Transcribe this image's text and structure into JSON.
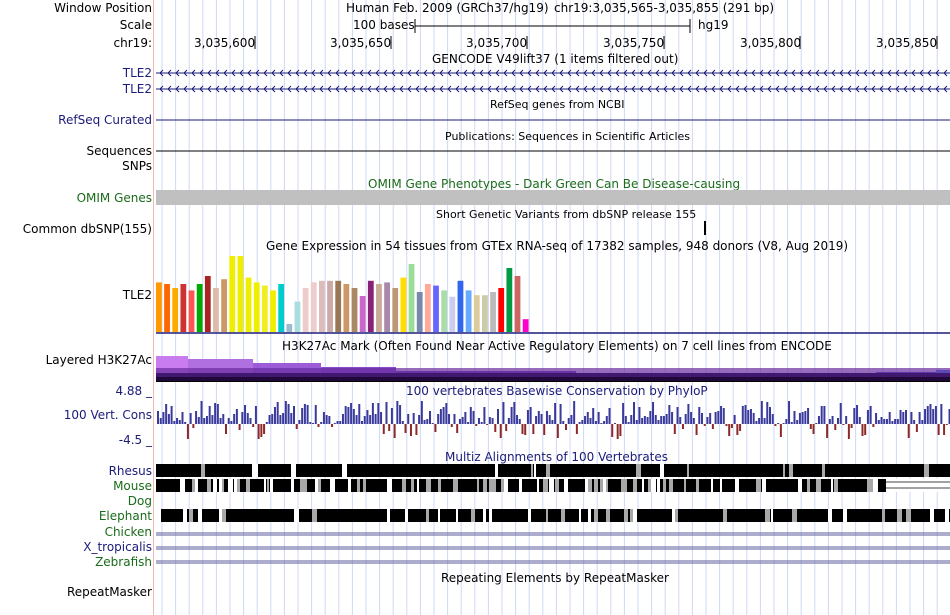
{
  "header": {
    "window_position_label": "Window Position",
    "scale_label": "Scale",
    "chr_label": "chr19:",
    "assembly_title": "Human Feb. 2009 (GRCh37/hg19)",
    "range_text": "chr19:3,035,565-3,035,855 (291 bp)",
    "scale_bar_text": "100 bases",
    "scale_db": "hg19",
    "ruler_ticks": [
      "3,035,600",
      "3,035,650",
      "3,035,700",
      "3,035,750",
      "3,035,800",
      "3,035,850"
    ]
  },
  "tracks": {
    "gencode": {
      "title": "GENCODE V49lift37 (1 items filtered out)",
      "items": [
        "TLE2",
        "TLE2"
      ]
    },
    "refseq": {
      "title": "RefSeq genes from NCBI",
      "label": "RefSeq Curated"
    },
    "publications": {
      "title": "Publications: Sequences in Scientific Articles",
      "label": "Sequences",
      "snps_label": "SNPs"
    },
    "omim": {
      "title": "OMIM Gene Phenotypes - Dark Green Can Be Disease-causing",
      "label": "OMIM Genes"
    },
    "dbsnp": {
      "title": "Short Genetic Variants from dbSNP release 155",
      "label": "Common dbSNP(155)"
    },
    "gtex": {
      "title": "Gene Expression in 54 tissues from GTEx RNA-seq of 17382 samples, 948 donors (V8, Aug 2019)",
      "label": "TLE2"
    },
    "h3k27ac": {
      "title": "H3K27Ac Mark (Often Found Near Active Regulatory Elements) on 7 cell lines from ENCODE",
      "label": "Layered H3K27Ac"
    },
    "phylop": {
      "title": "100 vertebrates Basewise Conservation by PhyloP",
      "label": "100 Vert. Cons",
      "max_label": "4.88 _",
      "min_label": "-4.5 _"
    },
    "multiz": {
      "title": "Multiz Alignments of 100 Vertebrates",
      "species": [
        "Rhesus",
        "Mouse",
        "Dog",
        "Elephant",
        "Chicken",
        "X_tropicalis",
        "Zebrafish"
      ]
    },
    "repeatmasker": {
      "title": "Repeating Elements by RepeatMasker",
      "label": "RepeatMasker"
    }
  },
  "gtex_values": [
    0.62,
    0.6,
    0.55,
    0.6,
    0.52,
    0.6,
    0.7,
    0.55,
    0.66,
    0.95,
    0.95,
    0.68,
    0.62,
    0.58,
    0.52,
    0.6,
    0.1,
    0.38,
    0.55,
    0.62,
    0.64,
    0.64,
    0.64,
    0.6,
    0.55,
    0.45,
    0.64,
    0.6,
    0.62,
    0.55,
    0.68,
    0.85,
    0.5,
    0.6,
    0.58,
    0.52,
    0.44,
    0.64,
    0.52,
    0.46,
    0.46,
    0.5,
    0.55,
    0.8,
    0.7,
    0.16
  ],
  "gtex_colors": [
    "#ff9900",
    "#ff6600",
    "#ffaa00",
    "#cc3333",
    "#ff5555",
    "#00aa00",
    "#aa2222",
    "#ddbbaa",
    "#cc9966",
    "#eeee00",
    "#eeee00",
    "#eeee00",
    "#eeee00",
    "#eeee22",
    "#eeee00",
    "#00cccc",
    "#99bbcc",
    "#aadddd",
    "#eecccc",
    "#eecccc",
    "#ddbbbb",
    "#ccaaaa",
    "#997755",
    "#cc9966",
    "#aa8866",
    "#cc66cc",
    "#882277",
    "#ccaa99",
    "#aa88aa",
    "#bb9977",
    "#ffdd00",
    "#99dd99",
    "#7788aa",
    "#ffaa99",
    "#6666ff",
    "#aaddaa",
    "#ccccee",
    "#3366ee",
    "#66aaff",
    "#ddcc99",
    "#ccccaa",
    "#bbbbbb",
    "#ff0000",
    "#009944",
    "#cc6666",
    "#ff00cc"
  ]
}
